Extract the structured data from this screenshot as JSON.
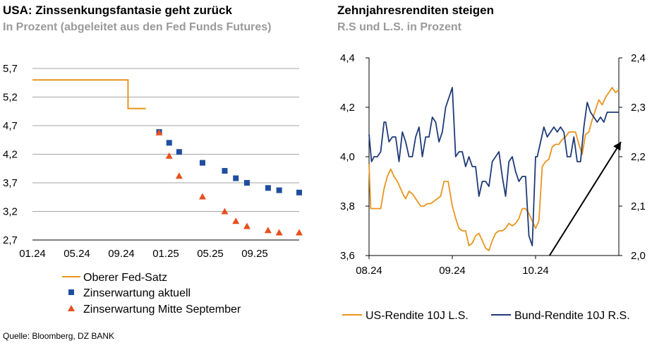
{
  "left_panel": {
    "title": "USA: Zinssenkungsfantasie geht zurück",
    "subtitle": "In Prozent (abgeleitet aus den Fed Funds Futures)"
  },
  "right_panel": {
    "title": "Zehnjahresrenditen steigen",
    "subtitle": "R.S und L.S. in Prozent"
  },
  "source": "Quelle: Bloomberg, DZ BANK",
  "colors": {
    "orange": "#E8951E",
    "navy": "#1F3A78",
    "blue": "#1F4E9E",
    "red": "#E8501E",
    "grid": "#a6a6a6"
  },
  "chart_data": [
    {
      "type": "scatter",
      "x_tick_labels": [
        "01.24",
        "05.24",
        "09.24",
        "01.25",
        "05.25",
        "09.25"
      ],
      "y_tick_labels": [
        "2,7",
        "3,2",
        "3,7",
        "4,2",
        "4,7",
        "5,2",
        "5,7"
      ],
      "ylim": [
        2.7,
        5.7
      ],
      "xlim": [
        0,
        24
      ],
      "grid": "horizontal",
      "legend_position": "bottom",
      "series": [
        {
          "name": "Oberer Fed-Satz",
          "kind": "step-line",
          "points": [
            [
              0,
              5.5
            ],
            [
              8.6,
              5.5
            ],
            [
              8.6,
              5.0
            ],
            [
              10.2,
              5.0
            ]
          ]
        },
        {
          "name": "Zinserwartung aktuell",
          "kind": "square",
          "points": [
            [
              11.4,
              4.59
            ],
            [
              12.3,
              4.4
            ],
            [
              13.2,
              4.24
            ],
            [
              15.3,
              4.05
            ],
            [
              17.3,
              3.91
            ],
            [
              18.3,
              3.78
            ],
            [
              19.3,
              3.7
            ],
            [
              21.2,
              3.61
            ],
            [
              22.2,
              3.57
            ],
            [
              24.0,
              3.53
            ]
          ]
        },
        {
          "name": "Zinserwartung Mitte September",
          "kind": "triangle",
          "points": [
            [
              11.4,
              4.58
            ],
            [
              12.3,
              4.17
            ],
            [
              13.2,
              3.82
            ],
            [
              15.3,
              3.46
            ],
            [
              17.3,
              3.2
            ],
            [
              18.3,
              3.03
            ],
            [
              19.3,
              2.94
            ],
            [
              21.2,
              2.87
            ],
            [
              22.2,
              2.83
            ],
            [
              24.0,
              2.83
            ]
          ]
        }
      ]
    },
    {
      "type": "line",
      "x_tick_labels": [
        "08.24",
        "09.24",
        "10.24"
      ],
      "y_left_tick_labels": [
        "3,6",
        "3,8",
        "4,0",
        "4,2",
        "4,4"
      ],
      "y_right_tick_labels": [
        "2,0",
        "2,1",
        "2,2",
        "2,3",
        "2,4"
      ],
      "ylim_left": [
        3.6,
        4.4
      ],
      "ylim_right": [
        2.0,
        2.4
      ],
      "x_months_range": [
        0,
        3
      ],
      "grid": "none",
      "legend_position": "bottom",
      "series": [
        {
          "name": "US-Rendite 10J L.S.",
          "axis": "left",
          "x": [
            0.0,
            0.02,
            0.06,
            0.1,
            0.14,
            0.18,
            0.22,
            0.26,
            0.3,
            0.34,
            0.38,
            0.42,
            0.44,
            0.48,
            0.52,
            0.56,
            0.6,
            0.62,
            0.66,
            0.7,
            0.74,
            0.78,
            0.82,
            0.86,
            0.9,
            0.95,
            1.0,
            1.05,
            1.08,
            1.12,
            1.16,
            1.2,
            1.24,
            1.28,
            1.32,
            1.36,
            1.4,
            1.44,
            1.48,
            1.52,
            1.56,
            1.6,
            1.64,
            1.68,
            1.72,
            1.76,
            1.8,
            1.84,
            1.88,
            1.92,
            1.96,
            2.0,
            2.04,
            2.08,
            2.12,
            2.16,
            2.2,
            2.24,
            2.28,
            2.32,
            2.36,
            2.4,
            2.44,
            2.48,
            2.52,
            2.56,
            2.6,
            2.64,
            2.68,
            2.72,
            2.76,
            2.8,
            2.84,
            2.88,
            2.92,
            2.96,
            3.0
          ],
          "y": [
            3.97,
            3.79,
            3.79,
            3.79,
            3.79,
            3.87,
            3.92,
            3.95,
            3.92,
            3.9,
            3.87,
            3.84,
            3.83,
            3.86,
            3.85,
            3.83,
            3.81,
            3.8,
            3.8,
            3.81,
            3.81,
            3.82,
            3.83,
            3.84,
            3.9,
            3.9,
            3.8,
            3.74,
            3.71,
            3.7,
            3.7,
            3.64,
            3.65,
            3.68,
            3.69,
            3.66,
            3.63,
            3.62,
            3.66,
            3.69,
            3.7,
            3.7,
            3.71,
            3.73,
            3.72,
            3.73,
            3.75,
            3.79,
            3.79,
            3.77,
            3.74,
            3.71,
            3.74,
            3.96,
            3.98,
            3.99,
            4.04,
            4.05,
            4.05,
            4.07,
            4.08,
            4.1,
            4.1,
            4.1,
            4.05,
            4.01,
            4.09,
            4.1,
            4.15,
            4.19,
            4.23,
            4.21,
            4.24,
            4.26,
            4.28,
            4.26,
            4.27
          ]
        },
        {
          "name": "Bund-Rendite 10J R.S.",
          "axis": "right",
          "x": [
            0.0,
            0.03,
            0.06,
            0.1,
            0.14,
            0.18,
            0.2,
            0.24,
            0.28,
            0.32,
            0.36,
            0.4,
            0.44,
            0.48,
            0.52,
            0.56,
            0.6,
            0.64,
            0.68,
            0.72,
            0.76,
            0.8,
            0.84,
            0.88,
            0.92,
            0.96,
            1.0,
            1.04,
            1.08,
            1.12,
            1.16,
            1.2,
            1.24,
            1.28,
            1.32,
            1.36,
            1.4,
            1.44,
            1.48,
            1.52,
            1.56,
            1.6,
            1.64,
            1.68,
            1.72,
            1.76,
            1.8,
            1.84,
            1.88,
            1.92,
            1.96,
            2.0,
            2.02,
            2.06,
            2.1,
            2.14,
            2.18,
            2.22,
            2.26,
            2.3,
            2.34,
            2.38,
            2.42,
            2.46,
            2.5,
            2.54,
            2.58,
            2.62,
            2.66,
            2.7,
            2.74,
            2.78,
            2.82,
            2.86,
            2.9,
            2.94,
            2.98,
            3.0
          ],
          "y": [
            2.245,
            2.19,
            2.2,
            2.2,
            2.21,
            2.27,
            2.27,
            2.23,
            2.24,
            2.24,
            2.19,
            2.25,
            2.23,
            2.2,
            2.2,
            2.24,
            2.26,
            2.2,
            2.24,
            2.24,
            2.28,
            2.27,
            2.23,
            2.25,
            2.3,
            2.32,
            2.34,
            2.2,
            2.21,
            2.21,
            2.18,
            2.2,
            2.18,
            2.18,
            2.12,
            2.15,
            2.15,
            2.14,
            2.19,
            2.2,
            2.21,
            2.16,
            2.12,
            2.19,
            2.2,
            2.17,
            2.15,
            2.16,
            2.16,
            2.04,
            2.02,
            2.2,
            2.2,
            2.23,
            2.26,
            2.24,
            2.25,
            2.26,
            2.25,
            2.26,
            2.25,
            2.2,
            2.2,
            2.24,
            2.19,
            2.19,
            2.26,
            2.31,
            2.29,
            2.28,
            2.27,
            2.28,
            2.27,
            2.29,
            2.29,
            2.29,
            2.29,
            2.29
          ]
        }
      ],
      "annotation": {
        "type": "arrow",
        "from": [
          2.1,
          3.6
        ],
        "to": [
          3.0,
          4.06
        ],
        "axis": "left"
      }
    }
  ]
}
